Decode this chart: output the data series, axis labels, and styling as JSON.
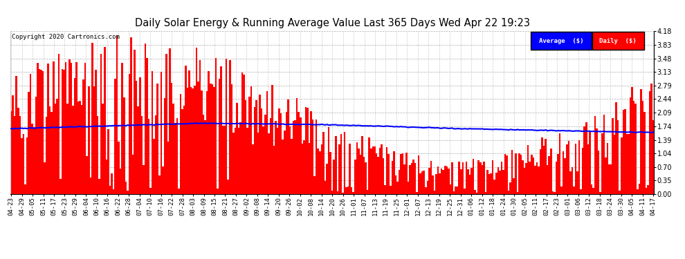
{
  "title": "Daily Solar Energy & Running Average Value Last 365 Days Wed Apr 22 19:23",
  "copyright": "Copyright 2020 Cartronics.com",
  "bar_color": "#FF0000",
  "avg_color": "#0000FF",
  "bg_color": "#FFFFFF",
  "yticks": [
    0.0,
    0.35,
    0.7,
    1.04,
    1.39,
    1.74,
    2.09,
    2.44,
    2.79,
    3.13,
    3.48,
    3.83,
    4.18
  ],
  "ylim": [
    0,
    4.18
  ],
  "legend_avg_label": "Average  ($)",
  "legend_daily_label": "Daily  ($)",
  "n_bars": 365,
  "xtick_labels": [
    "04-23",
    "04-29",
    "05-05",
    "05-11",
    "05-17",
    "05-23",
    "05-29",
    "06-04",
    "06-10",
    "06-16",
    "06-22",
    "06-28",
    "07-04",
    "07-10",
    "07-16",
    "07-22",
    "07-28",
    "08-03",
    "08-09",
    "08-15",
    "08-21",
    "08-27",
    "09-02",
    "09-08",
    "09-14",
    "09-20",
    "09-26",
    "10-02",
    "10-08",
    "10-14",
    "10-20",
    "10-26",
    "11-01",
    "11-07",
    "11-13",
    "11-19",
    "11-25",
    "12-01",
    "12-07",
    "12-13",
    "12-19",
    "12-25",
    "12-31",
    "01-06",
    "01-12",
    "01-18",
    "01-24",
    "01-30",
    "02-05",
    "02-11",
    "02-17",
    "02-23",
    "03-01",
    "03-06",
    "03-12",
    "03-18",
    "03-24",
    "03-30",
    "04-05",
    "04-11",
    "04-17"
  ]
}
